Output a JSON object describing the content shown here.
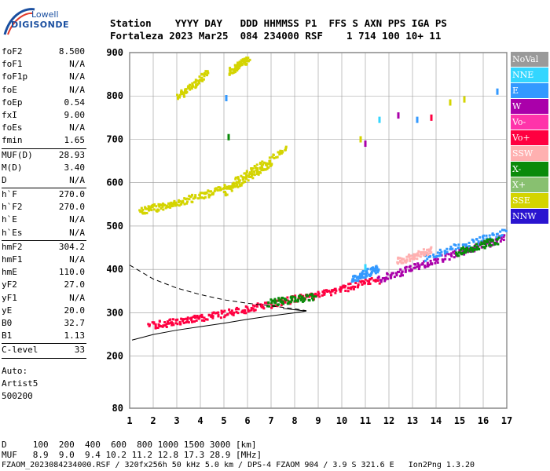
{
  "logo": {
    "line1": "Lowell",
    "line2": "DIGISONDE"
  },
  "header": {
    "line1": "Station    YYYY DAY   DDD HHMMSS P1  FFS S AXN PPS IGA PS",
    "line2": "Fortaleza 2023 Mar25  084 234000 RSF    1 714 100 10+ 11"
  },
  "side_params": [
    {
      "key": "foF2",
      "value": "8.500"
    },
    {
      "key": "foF1",
      "value": "N/A"
    },
    {
      "key": "foF1p",
      "value": "N/A"
    },
    {
      "key": "foE",
      "value": "N/A"
    },
    {
      "key": "foEp",
      "value": "0.54"
    },
    {
      "key": "fxI",
      "value": "9.00"
    },
    {
      "key": "foEs",
      "value": "N/A"
    },
    {
      "key": "fmin",
      "value": "1.65",
      "sep_after": true
    },
    {
      "key": "MUF(D)",
      "value": "28.93"
    },
    {
      "key": "M(D)",
      "value": "3.40"
    },
    {
      "key": "D",
      "value": "N/A",
      "sep_after": true
    },
    {
      "key": "h`F",
      "value": "270.0"
    },
    {
      "key": "h`F2",
      "value": "270.0"
    },
    {
      "key": "h`E",
      "value": "N/A"
    },
    {
      "key": "h`Es",
      "value": "N/A",
      "sep_after": true
    },
    {
      "key": "hmF2",
      "value": "304.2"
    },
    {
      "key": "hmF1",
      "value": "N/A"
    },
    {
      "key": "hmE",
      "value": "110.0"
    },
    {
      "key": "yF2",
      "value": "27.0"
    },
    {
      "key": "yF1",
      "value": "N/A"
    },
    {
      "key": "yE",
      "value": "20.0"
    },
    {
      "key": "B0",
      "value": "32.7"
    },
    {
      "key": "B1",
      "value": "1.13",
      "sep_after": true
    },
    {
      "key": "C-level",
      "value": "33",
      "sep_after": true
    }
  ],
  "side_free": [
    "Auto:",
    "Artist5",
    "500200"
  ],
  "legend": [
    {
      "label": "NoVal",
      "color": "#9a9a9a"
    },
    {
      "label": "NNE",
      "color": "#33d6ff"
    },
    {
      "label": "E",
      "color": "#3399ff"
    },
    {
      "label": "W",
      "color": "#aa00aa"
    },
    {
      "label": "Vo-",
      "color": "#ff33aa"
    },
    {
      "label": "Vo+",
      "color": "#ff0040"
    },
    {
      "label": "SSW",
      "color": "#ffb0b0"
    },
    {
      "label": "X-",
      "color": "#0a8a0a"
    },
    {
      "label": "X+",
      "color": "#88c070"
    },
    {
      "label": "SSE",
      "color": "#d4d400"
    },
    {
      "label": "NNW",
      "color": "#2a14d0"
    }
  ],
  "footer": {
    "line1": "D     100  200  400  600  800 1000 1500 3000 [km]",
    "line2": "MUF   8.9  9.0  9.4 10.2 11.2 12.8 17.3 28.9 [MHz]",
    "line3": "FZAOM_2023084234000.RSF / 320fx256h 50 kHz 5.0 km / DPS-4 FZAOM 904 / 3.9 S 321.6 E   Ion2Png 1.3.20"
  },
  "chart_data": {
    "type": "scatter",
    "x_ticks": [
      1,
      2,
      3,
      4,
      5,
      6,
      7,
      8,
      9,
      10,
      11,
      12,
      13,
      14,
      15,
      16,
      17
    ],
    "y_ticks": [
      80,
      200,
      300,
      400,
      500,
      600,
      700,
      800,
      900
    ],
    "xlim": [
      1,
      17
    ],
    "ylim": [
      80,
      900
    ],
    "grid": true,
    "series": [
      {
        "color": "#d4d400",
        "segments": [
          {
            "x": [
              3.0,
              4.3
            ],
            "y": [
              800,
              855
            ]
          },
          {
            "x": [
              5.2,
              6.0
            ],
            "y": [
              858,
              888
            ]
          },
          {
            "x": [
              1.4,
              3.0
            ],
            "y": [
              537,
              555
            ]
          },
          {
            "x": [
              3.0,
              5.0
            ],
            "y": [
              555,
              590
            ]
          },
          {
            "x": [
              5.0,
              7.6
            ],
            "y": [
              590,
              680
            ]
          },
          {
            "x": [
              5.0,
              7.0
            ],
            "y": [
              580,
              650
            ]
          }
        ]
      },
      {
        "color": "#ff0040",
        "segments": [
          {
            "x": [
              1.8,
              4.0
            ],
            "y": [
              272,
              290
            ]
          },
          {
            "x": [
              4.0,
              6.6
            ],
            "y": [
              290,
              318
            ]
          },
          {
            "x": [
              6.6,
              9.0
            ],
            "y": [
              318,
              345
            ]
          },
          {
            "x": [
              9.0,
              11.5
            ],
            "y": [
              345,
              378
            ]
          }
        ]
      },
      {
        "color": "#aa00aa",
        "segments": [
          {
            "x": [
              11.5,
              14.0
            ],
            "y": [
              378,
              425
            ]
          },
          {
            "x": [
              14.0,
              16.9
            ],
            "y": [
              425,
              475
            ]
          }
        ]
      },
      {
        "color": "#3399ff",
        "segments": [
          {
            "x": [
              13.5,
              16.9
            ],
            "y": [
              430,
              488
            ]
          },
          {
            "x": [
              10.4,
              11.5
            ],
            "y": [
              380,
              405
            ]
          }
        ]
      },
      {
        "color": "#ffb0b0",
        "segments": [
          {
            "x": [
              12.3,
              13.8
            ],
            "y": [
              420,
              448
            ]
          }
        ]
      },
      {
        "color": "#0a8a0a",
        "segments": [
          {
            "x": [
              6.8,
              8.8
            ],
            "y": [
              325,
              340
            ]
          },
          {
            "x": [
              14.8,
              16.6
            ],
            "y": [
              440,
              470
            ]
          }
        ]
      }
    ],
    "dots": [
      {
        "x": 10.8,
        "y": 700,
        "color": "#d4d400"
      },
      {
        "x": 11.0,
        "y": 690,
        "color": "#aa00aa"
      },
      {
        "x": 11.6,
        "y": 745,
        "color": "#33d6ff"
      },
      {
        "x": 12.4,
        "y": 755,
        "color": "#aa00aa"
      },
      {
        "x": 13.2,
        "y": 745,
        "color": "#3399ff"
      },
      {
        "x": 13.8,
        "y": 750,
        "color": "#ff0040"
      },
      {
        "x": 14.6,
        "y": 785,
        "color": "#d4d400"
      },
      {
        "x": 15.2,
        "y": 792,
        "color": "#d4d400"
      },
      {
        "x": 16.6,
        "y": 810,
        "color": "#3399ff"
      },
      {
        "x": 11.0,
        "y": 405,
        "color": "#33d6ff"
      },
      {
        "x": 5.1,
        "y": 795,
        "color": "#3399ff"
      },
      {
        "x": 5.2,
        "y": 705,
        "color": "#0a8a0a"
      }
    ],
    "curves": [
      {
        "style": "dashed",
        "x": [
          1.0,
          2.0,
          3.0,
          4.0,
          5.0,
          6.0,
          7.0,
          8.0,
          8.5
        ],
        "y": [
          410,
          378,
          357,
          342,
          330,
          322,
          316,
          309,
          305
        ]
      },
      {
        "style": "solid",
        "x": [
          1.1,
          2.0,
          3.0,
          4.0,
          5.0,
          6.0,
          7.0,
          8.0,
          8.5,
          7.5
        ],
        "y": [
          237,
          250,
          260,
          268,
          276,
          285,
          293,
          300,
          304,
          310
        ]
      }
    ]
  }
}
